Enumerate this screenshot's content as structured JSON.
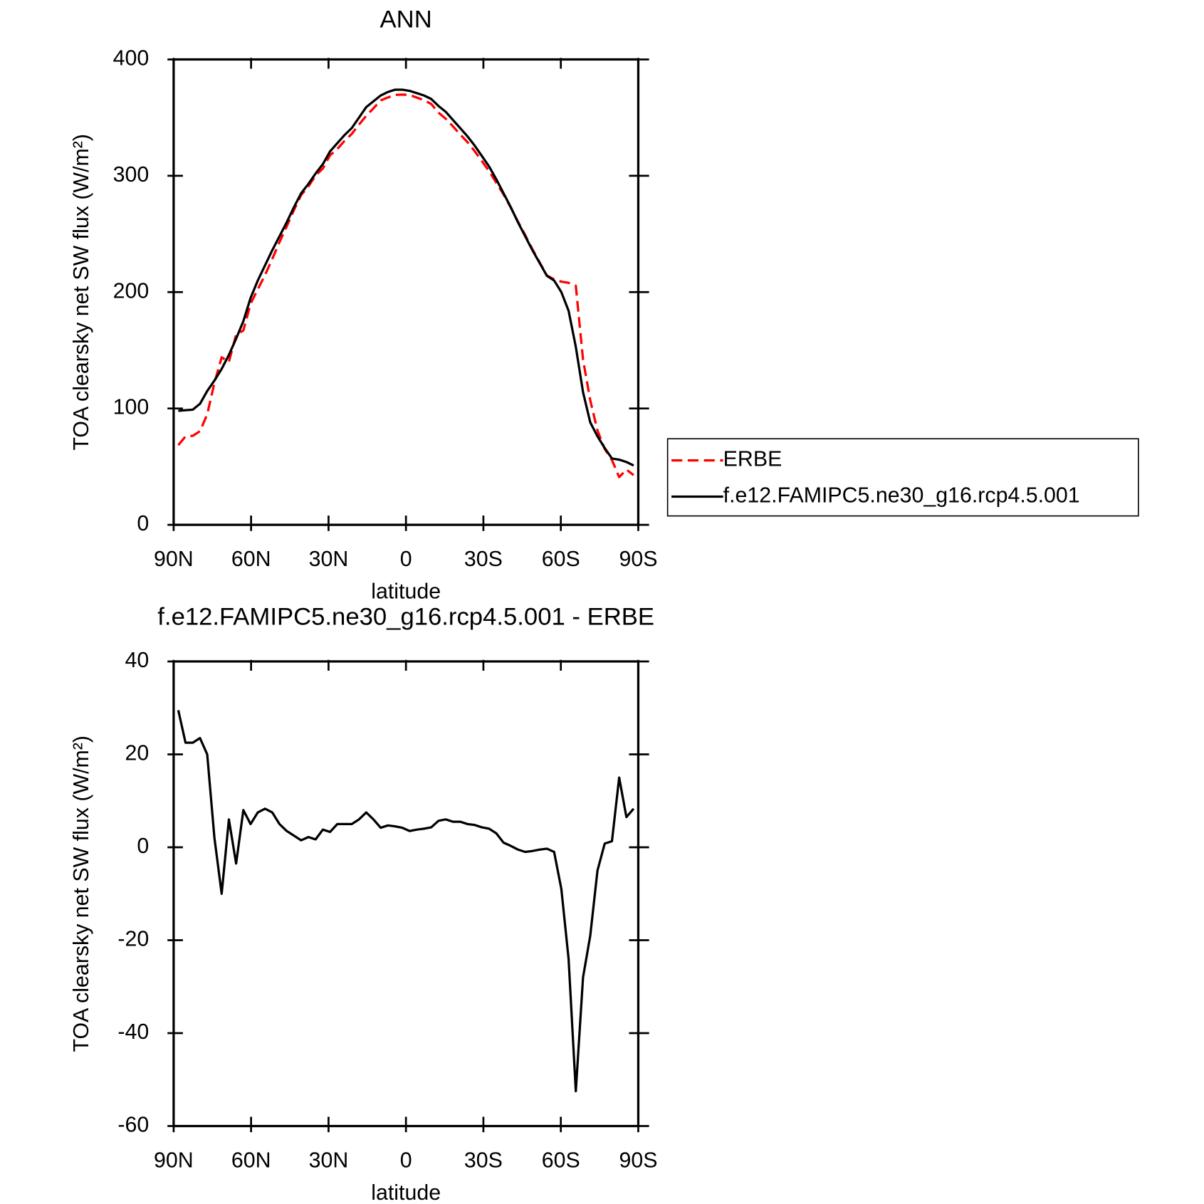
{
  "chart_data": [
    {
      "type": "line",
      "title": "ANN",
      "x_label": "latitude",
      "y_label": "TOA clearsky net SW flux (W/m²)",
      "x": [
        88.2,
        85.4,
        82.6,
        79.8,
        77,
        74.2,
        71.4,
        68.6,
        65.8,
        63,
        60.2,
        57.4,
        54.6,
        51.8,
        49,
        46.2,
        43.4,
        40.6,
        37.8,
        35,
        32.2,
        29.4,
        26.6,
        23.8,
        21,
        18.2,
        15.4,
        12.6,
        9.8,
        7,
        4.2,
        1.4,
        -1.4,
        -4.2,
        -7,
        -9.8,
        -12.6,
        -15.4,
        -18.2,
        -21,
        -23.8,
        -26.6,
        -29.4,
        -32.2,
        -35,
        -37.8,
        -40.6,
        -43.4,
        -46.2,
        -49,
        -51.8,
        -54.6,
        -57.4,
        -60.2,
        -63,
        -65.8,
        -68.6,
        -71.4,
        -74.2,
        -77,
        -79.8,
        -82.6,
        -85.4,
        -88.2
      ],
      "series": [
        {
          "name": "ERBE",
          "color": "#ff0000",
          "line_style": "dashed",
          "values": [
            68.5,
            76,
            76.5,
            80.5,
            95,
            122,
            144,
            140,
            163.5,
            167,
            190,
            202.5,
            214.7,
            228.5,
            243,
            256.5,
            270.5,
            283.5,
            290.8,
            300.3,
            306.2,
            317.7,
            323,
            330,
            336,
            344,
            351.5,
            358,
            364.8,
            367.3,
            369.5,
            369.8,
            369.5,
            367.2,
            365,
            361.7,
            354.3,
            349,
            342.5,
            335.5,
            329,
            321.2,
            312.7,
            304,
            294,
            284,
            272.7,
            260.5,
            249,
            236.8,
            225.5,
            214.3,
            211,
            209,
            208,
            205.5,
            142,
            107,
            81,
            65.2,
            55.7,
            41,
            47.5,
            42.7
          ]
        },
        {
          "name": "f.e12.FAMIPC5.ne30_g16.rcp4.5.001",
          "color": "#000000",
          "line_style": "solid",
          "values": [
            98,
            98.5,
            99,
            104,
            115,
            124,
            134,
            146,
            160,
            175,
            195,
            210,
            223,
            236,
            248,
            260,
            273,
            285,
            293,
            302,
            310,
            321,
            328,
            335,
            341,
            350,
            359,
            364,
            369,
            372,
            374,
            374,
            373,
            371,
            369,
            366,
            360,
            355,
            348,
            341,
            334,
            326,
            317,
            308,
            297,
            285,
            273,
            260,
            248,
            236,
            225,
            214,
            210,
            200,
            184,
            153,
            114,
            88,
            76,
            66,
            57,
            56,
            54,
            51
          ]
        }
      ],
      "xlim": [
        90,
        -90
      ],
      "xticks": [
        {
          "value": 90,
          "label": "90N"
        },
        {
          "value": 60,
          "label": "60N"
        },
        {
          "value": 30,
          "label": "30N"
        },
        0,
        {
          "value": -30,
          "label": "30S"
        },
        {
          "value": -60,
          "label": "60S"
        },
        {
          "value": -90,
          "label": "90S"
        }
      ],
      "ylim": [
        0,
        400
      ],
      "yticks": [
        0,
        100,
        200,
        300,
        400
      ],
      "legend": "right"
    },
    {
      "type": "line",
      "title": "f.e12.FAMIPC5.ne30_g16.rcp4.5.001 - ERBE",
      "x_label": "latitude",
      "y_label": "TOA clearsky net SW flux (W/m²)",
      "x": [
        88.2,
        85.4,
        82.6,
        79.8,
        77,
        74.2,
        71.4,
        68.6,
        65.8,
        63,
        60.2,
        57.4,
        54.6,
        51.8,
        49,
        46.2,
        43.4,
        40.6,
        37.8,
        35,
        32.2,
        29.4,
        26.6,
        23.8,
        21,
        18.2,
        15.4,
        12.6,
        9.8,
        7,
        4.2,
        1.4,
        -1.4,
        -4.2,
        -7,
        -9.8,
        -12.6,
        -15.4,
        -18.2,
        -21,
        -23.8,
        -26.6,
        -29.4,
        -32.2,
        -35,
        -37.8,
        -40.6,
        -43.4,
        -46.2,
        -49,
        -51.8,
        -54.6,
        -57.4,
        -60.2,
        -63,
        -65.8,
        -68.6,
        -71.4,
        -74.2,
        -77,
        -79.8,
        -82.6,
        -85.4,
        -88.2
      ],
      "series": [
        {
          "color": "#000000",
          "line_style": "solid",
          "values": [
            29.5,
            22.5,
            22.5,
            23.5,
            20,
            2,
            -10,
            6,
            -3.5,
            8,
            5,
            7.5,
            8.3,
            7.5,
            5,
            3.5,
            2.5,
            1.5,
            2.2,
            1.7,
            3.8,
            3.3,
            5,
            5,
            5,
            6,
            7.5,
            6,
            4.2,
            4.7,
            4.5,
            4.2,
            3.5,
            3.8,
            4,
            4.3,
            5.7,
            6,
            5.5,
            5.5,
            5,
            4.8,
            4.3,
            4,
            3,
            1,
            0.3,
            -0.5,
            -1,
            -0.8,
            -0.5,
            -0.3,
            -1,
            -9,
            -24,
            -52.5,
            -28,
            -19,
            -5,
            0.8,
            1.3,
            15,
            6.5,
            8.3
          ]
        }
      ],
      "xlim": [
        90,
        -90
      ],
      "xticks": [
        {
          "value": 90,
          "label": "90N"
        },
        {
          "value": 60,
          "label": "60N"
        },
        {
          "value": 30,
          "label": "30N"
        },
        0,
        {
          "value": -30,
          "label": "30S"
        },
        {
          "value": -60,
          "label": "60S"
        },
        {
          "value": -90,
          "label": "90S"
        }
      ],
      "ylim": [
        -60,
        40
      ],
      "yticks": [
        -60,
        -40,
        -20,
        0,
        20,
        40
      ]
    }
  ]
}
